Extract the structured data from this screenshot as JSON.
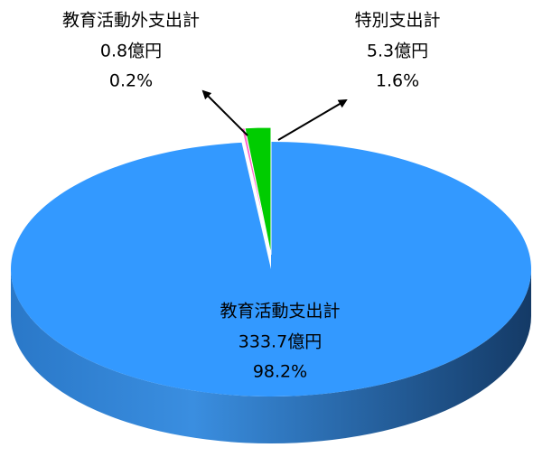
{
  "chart_data": {
    "type": "pie",
    "categories": [
      "教育活動支出計",
      "教育活動外支出計",
      "特別支出計"
    ],
    "values": [
      98.2,
      0.2,
      1.6
    ],
    "value_labels": [
      "98.2%",
      "0.2%",
      "1.6%"
    ],
    "amounts": [
      333.7,
      0.8,
      5.3
    ],
    "amount_labels": [
      "333.7億円",
      "0.8億円",
      "5.3億円"
    ],
    "colors": [
      "#3399ff",
      "#ff66cc",
      "#00cc00"
    ]
  }
}
